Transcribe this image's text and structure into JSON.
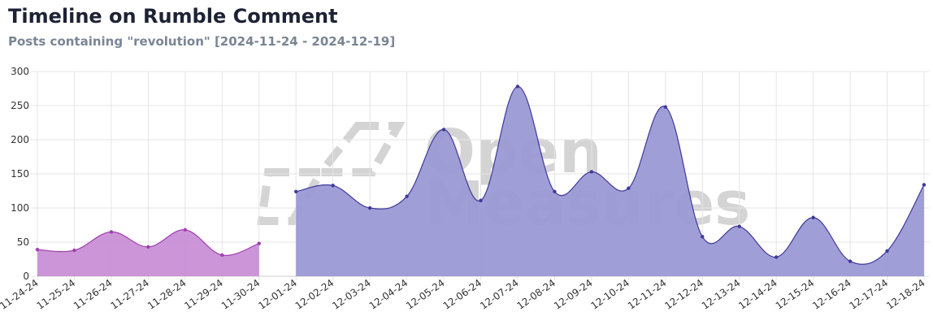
{
  "title": "Timeline on Rumble Comment",
  "subtitle": "Posts containing \"revolution\" [2024-11-24 - 2024-12-19]",
  "watermark": {
    "line1": "Open",
    "line2": "Measures"
  },
  "chart_data": {
    "type": "area",
    "categories": [
      "11-24-24",
      "11-25-24",
      "11-26-24",
      "11-27-24",
      "11-28-24",
      "11-29-24",
      "11-30-24",
      "12-01-24",
      "12-02-24",
      "12-03-24",
      "12-04-24",
      "12-05-24",
      "12-06-24",
      "12-07-24",
      "12-08-24",
      "12-09-24",
      "12-10-24",
      "12-11-24",
      "12-12-24",
      "12-13-24",
      "12-14-24",
      "12-15-24",
      "12-16-24",
      "12-17-24",
      "12-18-24"
    ],
    "ylim": [
      0,
      300
    ],
    "yticks": [
      0,
      50,
      100,
      150,
      200,
      250,
      300
    ],
    "grid": true,
    "series": [
      {
        "color": "#c98fd6",
        "line_color": "#a040b0",
        "values": [
          39,
          38,
          65,
          43,
          68,
          31,
          48,
          null,
          null,
          null,
          null,
          null,
          null,
          null,
          null,
          null,
          null,
          null,
          null,
          null,
          null,
          null,
          null,
          null,
          null
        ]
      },
      {
        "color": "#9b99d4",
        "line_color": "#3f3a9a",
        "values": [
          null,
          null,
          null,
          null,
          null,
          null,
          null,
          124,
          133,
          100,
          117,
          215,
          111,
          278,
          124,
          153,
          129,
          248,
          58,
          73,
          28,
          86,
          22,
          37,
          134
        ]
      }
    ]
  }
}
